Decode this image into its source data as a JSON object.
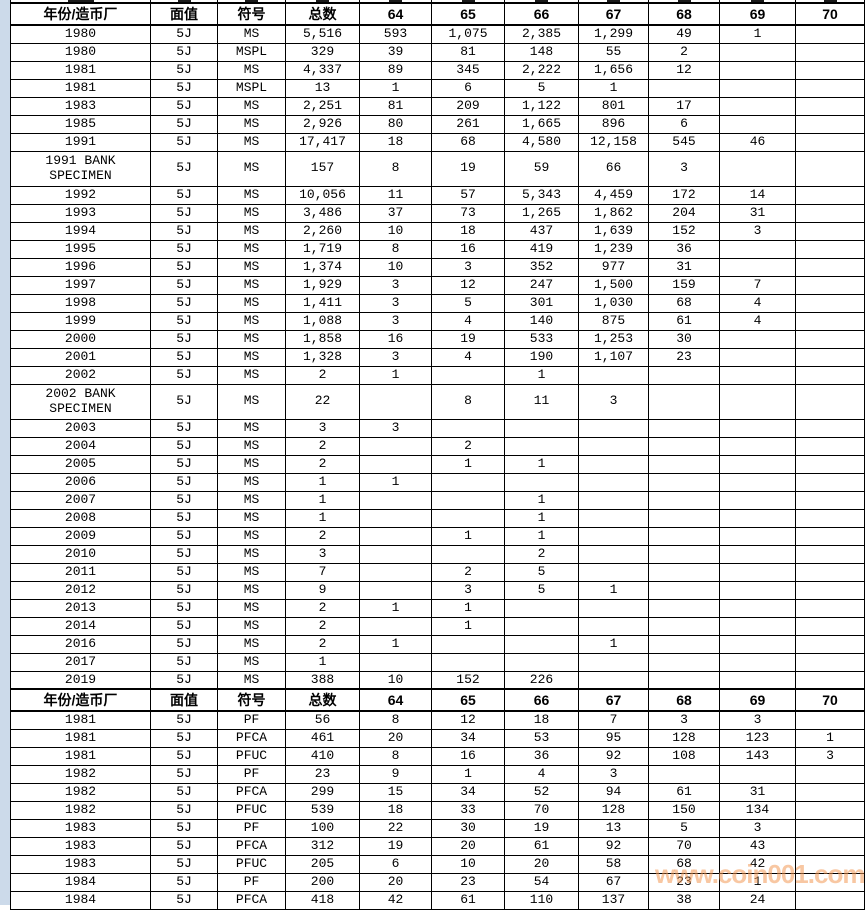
{
  "app": {
    "description": "coin grading census population table",
    "denomination_note": "5J"
  },
  "colors": {
    "grid": "#000000",
    "margin-strip": "#ccdaea",
    "watermark": "rgba(243,153,85,0.55)",
    "bg": "#ffffff"
  },
  "watermark": {
    "text": "www.coin001.com"
  },
  "table": {
    "columns": [
      "年份/造币厂",
      "面值",
      "符号",
      "总数",
      "64",
      "65",
      "66",
      "67",
      "68",
      "69",
      "70"
    ],
    "sections": [
      {
        "name": "mint-state-section",
        "rows": [
          {
            "tall": false,
            "cells": [
              "1980",
              "5J",
              "MS",
              "5,516",
              "593",
              "1,075",
              "2,385",
              "1,299",
              "49",
              "1",
              ""
            ]
          },
          {
            "tall": false,
            "cells": [
              "1980",
              "5J",
              "MSPL",
              "329",
              "39",
              "81",
              "148",
              "55",
              "2",
              "",
              ""
            ]
          },
          {
            "tall": false,
            "cells": [
              "1981",
              "5J",
              "MS",
              "4,337",
              "89",
              "345",
              "2,222",
              "1,656",
              "12",
              "",
              ""
            ]
          },
          {
            "tall": false,
            "cells": [
              "1981",
              "5J",
              "MSPL",
              "13",
              "1",
              "6",
              "5",
              "1",
              "",
              "",
              ""
            ]
          },
          {
            "tall": false,
            "cells": [
              "1983",
              "5J",
              "MS",
              "2,251",
              "81",
              "209",
              "1,122",
              "801",
              "17",
              "",
              ""
            ]
          },
          {
            "tall": false,
            "cells": [
              "1985",
              "5J",
              "MS",
              "2,926",
              "80",
              "261",
              "1,665",
              "896",
              "6",
              "",
              ""
            ]
          },
          {
            "tall": false,
            "cells": [
              "1991",
              "5J",
              "MS",
              "17,417",
              "18",
              "68",
              "4,580",
              "12,158",
              "545",
              "46",
              ""
            ]
          },
          {
            "tall": true,
            "cells": [
              "1991 BANK SPECIMEN",
              "5J",
              "MS",
              "157",
              "8",
              "19",
              "59",
              "66",
              "3",
              "",
              ""
            ]
          },
          {
            "tall": false,
            "cells": [
              "1992",
              "5J",
              "MS",
              "10,056",
              "11",
              "57",
              "5,343",
              "4,459",
              "172",
              "14",
              ""
            ]
          },
          {
            "tall": false,
            "cells": [
              "1993",
              "5J",
              "MS",
              "3,486",
              "37",
              "73",
              "1,265",
              "1,862",
              "204",
              "31",
              ""
            ]
          },
          {
            "tall": false,
            "cells": [
              "1994",
              "5J",
              "MS",
              "2,260",
              "10",
              "18",
              "437",
              "1,639",
              "152",
              "3",
              ""
            ]
          },
          {
            "tall": false,
            "cells": [
              "1995",
              "5J",
              "MS",
              "1,719",
              "8",
              "16",
              "419",
              "1,239",
              "36",
              "",
              ""
            ]
          },
          {
            "tall": false,
            "cells": [
              "1996",
              "5J",
              "MS",
              "1,374",
              "10",
              "3",
              "352",
              "977",
              "31",
              "",
              ""
            ]
          },
          {
            "tall": false,
            "cells": [
              "1997",
              "5J",
              "MS",
              "1,929",
              "3",
              "12",
              "247",
              "1,500",
              "159",
              "7",
              ""
            ]
          },
          {
            "tall": false,
            "cells": [
              "1998",
              "5J",
              "MS",
              "1,411",
              "3",
              "5",
              "301",
              "1,030",
              "68",
              "4",
              ""
            ]
          },
          {
            "tall": false,
            "cells": [
              "1999",
              "5J",
              "MS",
              "1,088",
              "3",
              "4",
              "140",
              "875",
              "61",
              "4",
              ""
            ]
          },
          {
            "tall": false,
            "cells": [
              "2000",
              "5J",
              "MS",
              "1,858",
              "16",
              "19",
              "533",
              "1,253",
              "30",
              "",
              ""
            ]
          },
          {
            "tall": false,
            "cells": [
              "2001",
              "5J",
              "MS",
              "1,328",
              "3",
              "4",
              "190",
              "1,107",
              "23",
              "",
              ""
            ]
          },
          {
            "tall": false,
            "cells": [
              "2002",
              "5J",
              "MS",
              "2",
              "1",
              "",
              "1",
              "",
              "",
              "",
              ""
            ]
          },
          {
            "tall": true,
            "cells": [
              "2002 BANK SPECIMEN",
              "5J",
              "MS",
              "22",
              "",
              "8",
              "11",
              "3",
              "",
              "",
              ""
            ]
          },
          {
            "tall": false,
            "cells": [
              "2003",
              "5J",
              "MS",
              "3",
              "3",
              "",
              "",
              "",
              "",
              "",
              ""
            ]
          },
          {
            "tall": false,
            "cells": [
              "2004",
              "5J",
              "MS",
              "2",
              "",
              "2",
              "",
              "",
              "",
              "",
              ""
            ]
          },
          {
            "tall": false,
            "cells": [
              "2005",
              "5J",
              "MS",
              "2",
              "",
              "1",
              "1",
              "",
              "",
              "",
              ""
            ]
          },
          {
            "tall": false,
            "cells": [
              "2006",
              "5J",
              "MS",
              "1",
              "1",
              "",
              "",
              "",
              "",
              "",
              ""
            ]
          },
          {
            "tall": false,
            "cells": [
              "2007",
              "5J",
              "MS",
              "1",
              "",
              "",
              "1",
              "",
              "",
              "",
              ""
            ]
          },
          {
            "tall": false,
            "cells": [
              "2008",
              "5J",
              "MS",
              "1",
              "",
              "",
              "1",
              "",
              "",
              "",
              ""
            ]
          },
          {
            "tall": false,
            "cells": [
              "2009",
              "5J",
              "MS",
              "2",
              "",
              "1",
              "1",
              "",
              "",
              "",
              ""
            ]
          },
          {
            "tall": false,
            "cells": [
              "2010",
              "5J",
              "MS",
              "3",
              "",
              "",
              "2",
              "",
              "",
              "",
              ""
            ]
          },
          {
            "tall": false,
            "cells": [
              "2011",
              "5J",
              "MS",
              "7",
              "",
              "2",
              "5",
              "",
              "",
              "",
              ""
            ]
          },
          {
            "tall": false,
            "cells": [
              "2012",
              "5J",
              "MS",
              "9",
              "",
              "3",
              "5",
              "1",
              "",
              "",
              ""
            ]
          },
          {
            "tall": false,
            "cells": [
              "2013",
              "5J",
              "MS",
              "2",
              "1",
              "1",
              "",
              "",
              "",
              "",
              ""
            ]
          },
          {
            "tall": false,
            "cells": [
              "2014",
              "5J",
              "MS",
              "2",
              "",
              "1",
              "",
              "",
              "",
              "",
              ""
            ]
          },
          {
            "tall": false,
            "cells": [
              "2016",
              "5J",
              "MS",
              "2",
              "1",
              "",
              "",
              "1",
              "",
              "",
              ""
            ]
          },
          {
            "tall": false,
            "cells": [
              "2017",
              "5J",
              "MS",
              "1",
              "",
              "",
              "",
              "",
              "",
              "",
              ""
            ]
          },
          {
            "tall": false,
            "cells": [
              "2019",
              "5J",
              "MS",
              "388",
              "10",
              "152",
              "226",
              "",
              "",
              "",
              ""
            ]
          }
        ]
      },
      {
        "name": "proof-section",
        "rows": [
          {
            "tall": false,
            "cells": [
              "1981",
              "5J",
              "PF",
              "56",
              "8",
              "12",
              "18",
              "7",
              "3",
              "3",
              ""
            ]
          },
          {
            "tall": false,
            "cells": [
              "1981",
              "5J",
              "PFCA",
              "461",
              "20",
              "34",
              "53",
              "95",
              "128",
              "123",
              "1"
            ]
          },
          {
            "tall": false,
            "cells": [
              "1981",
              "5J",
              "PFUC",
              "410",
              "8",
              "16",
              "36",
              "92",
              "108",
              "143",
              "3"
            ]
          },
          {
            "tall": false,
            "cells": [
              "1982",
              "5J",
              "PF",
              "23",
              "9",
              "1",
              "4",
              "3",
              "",
              "",
              ""
            ]
          },
          {
            "tall": false,
            "cells": [
              "1982",
              "5J",
              "PFCA",
              "299",
              "15",
              "34",
              "52",
              "94",
              "61",
              "31",
              ""
            ]
          },
          {
            "tall": false,
            "cells": [
              "1982",
              "5J",
              "PFUC",
              "539",
              "18",
              "33",
              "70",
              "128",
              "150",
              "134",
              ""
            ]
          },
          {
            "tall": false,
            "cells": [
              "1983",
              "5J",
              "PF",
              "100",
              "22",
              "30",
              "19",
              "13",
              "5",
              "3",
              ""
            ]
          },
          {
            "tall": false,
            "cells": [
              "1983",
              "5J",
              "PFCA",
              "312",
              "19",
              "20",
              "61",
              "92",
              "70",
              "43",
              ""
            ]
          },
          {
            "tall": false,
            "cells": [
              "1983",
              "5J",
              "PFUC",
              "205",
              "6",
              "10",
              "20",
              "58",
              "68",
              "42",
              ""
            ]
          },
          {
            "tall": false,
            "cells": [
              "1984",
              "5J",
              "PF",
              "200",
              "20",
              "23",
              "54",
              "67",
              "23",
              "1",
              ""
            ]
          },
          {
            "tall": false,
            "cells": [
              "1984",
              "5J",
              "PFCA",
              "418",
              "42",
              "61",
              "110",
              "137",
              "38",
              "24",
              ""
            ]
          }
        ]
      }
    ]
  }
}
